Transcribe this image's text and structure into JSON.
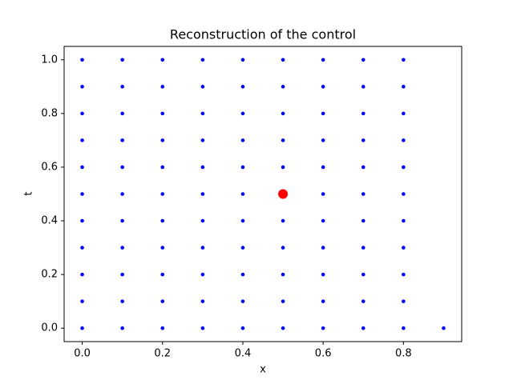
{
  "chart_data": {
    "type": "scatter",
    "title": "Reconstruction of the control",
    "x_label": "x",
    "y_label": "t",
    "xlim": [
      -0.045,
      0.945
    ],
    "ylim": [
      -0.05,
      1.05
    ],
    "xticks": [
      {
        "value": 0,
        "label": "0.0"
      },
      0.2,
      0.4,
      0.6,
      0.8
    ],
    "yticks": [
      {
        "value": 0,
        "label": "0.0"
      },
      0.2,
      0.4,
      0.6,
      0.8,
      {
        "value": 1,
        "label": "1.0"
      }
    ],
    "series": [
      {
        "color": "#0000ff",
        "x": [
          0,
          0,
          0,
          0,
          0,
          0,
          0,
          0,
          0,
          0,
          0,
          0.1,
          0.1,
          0.1,
          0.1,
          0.1,
          0.1,
          0.1,
          0.1,
          0.1,
          0.1,
          0.1,
          0.2,
          0.2,
          0.2,
          0.2,
          0.2,
          0.2,
          0.2,
          0.2,
          0.2,
          0.2,
          0.2,
          0.3,
          0.3,
          0.3,
          0.3,
          0.3,
          0.3,
          0.3,
          0.3,
          0.3,
          0.3,
          0.3,
          0.4,
          0.4,
          0.4,
          0.4,
          0.4,
          0.4,
          0.4,
          0.4,
          0.4,
          0.4,
          0.4,
          0.5,
          0.5,
          0.5,
          0.5,
          0.5,
          0.5,
          0.5,
          0.5,
          0.5,
          0.5,
          0.5,
          0.6,
          0.6,
          0.6,
          0.6,
          0.6,
          0.6,
          0.6,
          0.6,
          0.6,
          0.6,
          0.6,
          0.7,
          0.7,
          0.7,
          0.7,
          0.7,
          0.7,
          0.7,
          0.7,
          0.7,
          0.7,
          0.7,
          0.8,
          0.8,
          0.8,
          0.8,
          0.8,
          0.8,
          0.8,
          0.8,
          0.8,
          0.8,
          0.8,
          0.9
        ],
        "y": [
          0,
          0.1,
          0.2,
          0.3,
          0.4,
          0.5,
          0.6,
          0.7,
          0.8,
          0.9,
          1,
          0,
          0.1,
          0.2,
          0.3,
          0.4,
          0.5,
          0.6,
          0.7,
          0.8,
          0.9,
          1,
          0,
          0.1,
          0.2,
          0.3,
          0.4,
          0.5,
          0.6,
          0.7,
          0.8,
          0.9,
          1,
          0,
          0.1,
          0.2,
          0.3,
          0.4,
          0.5,
          0.6,
          0.7,
          0.8,
          0.9,
          1,
          0,
          0.1,
          0.2,
          0.3,
          0.4,
          0.5,
          0.6,
          0.7,
          0.8,
          0.9,
          1,
          0,
          0.1,
          0.2,
          0.3,
          0.4,
          0.5,
          0.6,
          0.7,
          0.8,
          0.9,
          1,
          0,
          0.1,
          0.2,
          0.3,
          0.4,
          0.5,
          0.6,
          0.7,
          0.8,
          0.9,
          1,
          0,
          0.1,
          0.2,
          0.3,
          0.4,
          0.5,
          0.6,
          0.7,
          0.8,
          0.9,
          1,
          0,
          0.1,
          0.2,
          0.3,
          0.4,
          0.5,
          0.6,
          0.7,
          0.8,
          0.9,
          1,
          0
        ]
      },
      {
        "color": "#ff0000",
        "x": [
          0.5
        ],
        "y": [
          0.5
        ]
      }
    ]
  }
}
